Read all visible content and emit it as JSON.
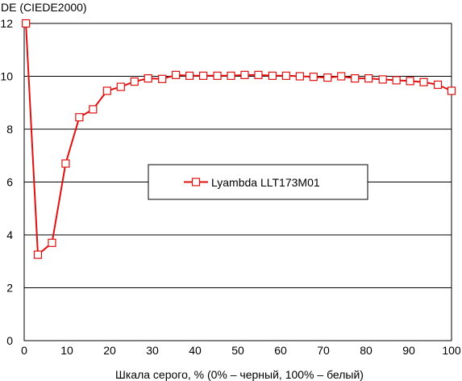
{
  "chart_data": {
    "type": "line",
    "title": "",
    "ylabel": "DE (CIEDE2000)",
    "xlabel": "Шкала серого, % (0% – черный, 100% – белый)",
    "xlim": [
      0,
      100
    ],
    "ylim": [
      0,
      12
    ],
    "xticks": [
      0,
      10,
      20,
      30,
      40,
      50,
      60,
      70,
      80,
      90,
      100
    ],
    "yticks": [
      0,
      2,
      4,
      6,
      8,
      10,
      12
    ],
    "grid": "horizontal",
    "legend_position": "center",
    "series": [
      {
        "name": "Lyambda LLT173M01",
        "color": "#e01010",
        "marker": "square",
        "x": [
          0.4,
          3.2,
          6.5,
          9.7,
          12.9,
          16.1,
          19.4,
          22.6,
          25.8,
          29.0,
          32.3,
          35.5,
          38.7,
          41.9,
          45.2,
          48.4,
          51.6,
          54.8,
          58.1,
          61.3,
          64.5,
          67.7,
          71.0,
          74.2,
          77.4,
          80.6,
          83.9,
          87.1,
          90.3,
          93.5,
          96.8,
          100.0
        ],
        "y": [
          12.0,
          3.25,
          3.7,
          6.7,
          8.45,
          8.75,
          9.45,
          9.6,
          9.8,
          9.92,
          9.9,
          10.05,
          10.02,
          10.02,
          10.02,
          10.02,
          10.05,
          10.05,
          10.02,
          10.02,
          10.0,
          9.98,
          9.95,
          10.0,
          9.92,
          9.92,
          9.88,
          9.85,
          9.82,
          9.78,
          9.68,
          9.45
        ]
      }
    ]
  }
}
